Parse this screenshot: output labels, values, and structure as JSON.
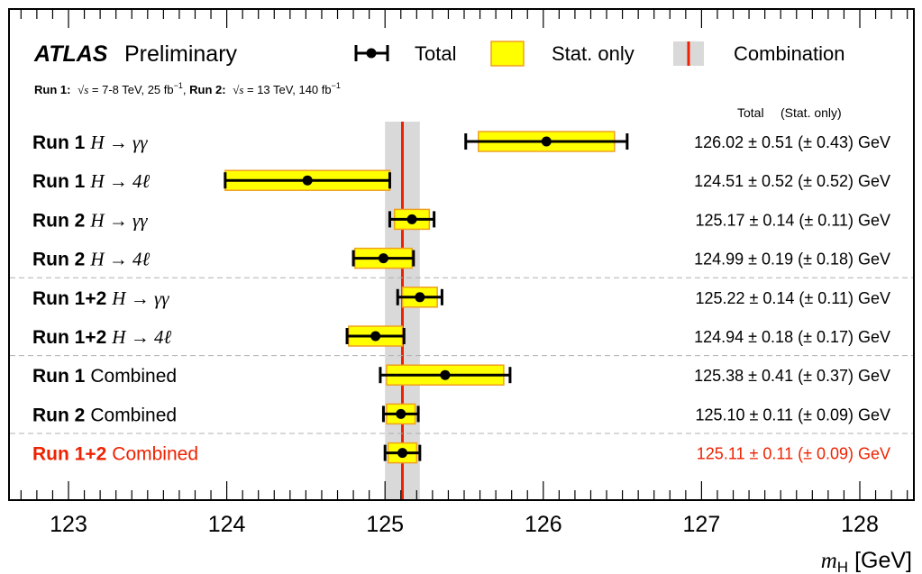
{
  "chart_data": {
    "type": "scatter",
    "experiment": "ATLAS",
    "label": "Preliminary",
    "subtitle": {
      "run1_label": "Run 1:",
      "run1_energy": " = 7-8 TeV, 25 fb",
      "run2_label": "Run 2:",
      "run2_energy": " = 13 TeV, 140 fb",
      "sqrt_s": "√s",
      "inverse": "−1",
      "separator": ", "
    },
    "legend": {
      "total": "Total",
      "stat": "Stat. only",
      "combination": "Combination"
    },
    "column_header": {
      "total": "Total",
      "stat": "(Stat. only)"
    },
    "xlabel": {
      "symbol": "m",
      "subscript": "H",
      "unit": "[GeV]"
    },
    "xlim": [
      122.6,
      128.4
    ],
    "xticks": [
      123,
      124,
      125,
      126,
      127,
      128
    ],
    "combination": {
      "value": 125.11,
      "total_error": 0.11
    },
    "entries": [
      {
        "run": "Run 1",
        "channel": "H → γγ",
        "value": 126.02,
        "total": 0.51,
        "stat": 0.43,
        "text": "126.02 ± 0.51 (± 0.43) GeV",
        "highlight": false
      },
      {
        "run": "Run 1",
        "channel": "H → 4ℓ",
        "value": 124.51,
        "total": 0.52,
        "stat": 0.52,
        "text": "124.51 ± 0.52 (± 0.52) GeV",
        "highlight": false
      },
      {
        "run": "Run 2",
        "channel": "H → γγ",
        "value": 125.17,
        "total": 0.14,
        "stat": 0.11,
        "text": "125.17 ± 0.14 (± 0.11) GeV",
        "highlight": false
      },
      {
        "run": "Run 2",
        "channel": "H → 4ℓ",
        "value": 124.99,
        "total": 0.19,
        "stat": 0.18,
        "text": "124.99 ± 0.19 (± 0.18) GeV",
        "highlight": false
      },
      {
        "run": "Run 1+2",
        "channel": "H → γγ",
        "value": 125.22,
        "total": 0.14,
        "stat": 0.11,
        "text": "125.22 ± 0.14 (± 0.11) GeV",
        "highlight": false
      },
      {
        "run": "Run 1+2",
        "channel": "H → 4ℓ",
        "value": 124.94,
        "total": 0.18,
        "stat": 0.17,
        "text": "124.94 ± 0.18 (± 0.17) GeV",
        "highlight": false
      },
      {
        "run": "Run 1",
        "channel": "Combined",
        "value": 125.38,
        "total": 0.41,
        "stat": 0.37,
        "text": "125.38 ± 0.41 (± 0.37) GeV",
        "highlight": false
      },
      {
        "run": "Run 2",
        "channel": "Combined",
        "value": 125.1,
        "total": 0.11,
        "stat": 0.09,
        "text": "125.10 ± 0.11 (± 0.09) GeV",
        "highlight": false
      },
      {
        "run": "Run 1+2",
        "channel": "Combined",
        "value": 125.11,
        "total": 0.11,
        "stat": 0.09,
        "text": "125.11 ± 0.11 (± 0.09) GeV",
        "highlight": true
      }
    ],
    "colors": {
      "stat_fill": "#ffff00",
      "stat_edge": "#f0a020",
      "combination_band": "#d9d9d9",
      "combination_line": "#ee2200",
      "highlight_text": "#ee2200",
      "separator": "#b0b0b0"
    }
  }
}
